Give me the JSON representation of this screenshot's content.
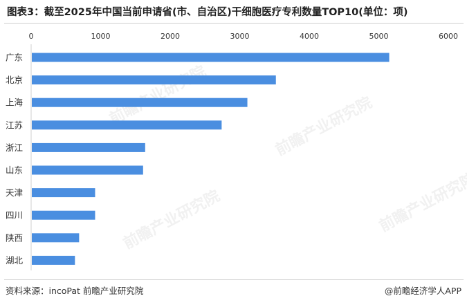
{
  "title": "图表3：截至2025年中国当前申请省(市、自治区)干细胞医疗专利数量TOP10(单位：项)",
  "source": "资料来源：incoPat 前瞻产业研究院",
  "brand": "@前瞻经济学人APP",
  "watermark": "前瞻产业研究院",
  "colors": {
    "bar": "#4a8ee0",
    "axis": "#cfcfcf",
    "text": "#333333"
  },
  "chart_data": {
    "type": "bar",
    "orientation": "horizontal",
    "categories": [
      "广东",
      "北京",
      "上海",
      "江苏",
      "浙江",
      "山东",
      "天津",
      "四川",
      "陕西",
      "湖北"
    ],
    "values": [
      5150,
      3520,
      3110,
      2740,
      1640,
      1610,
      920,
      920,
      690,
      630
    ],
    "xlim": [
      0,
      6000
    ],
    "xticks": [
      0,
      1000,
      2000,
      3000,
      4000,
      5000,
      6000
    ],
    "xaxis_position": "top",
    "grid": false,
    "legend": "none"
  }
}
